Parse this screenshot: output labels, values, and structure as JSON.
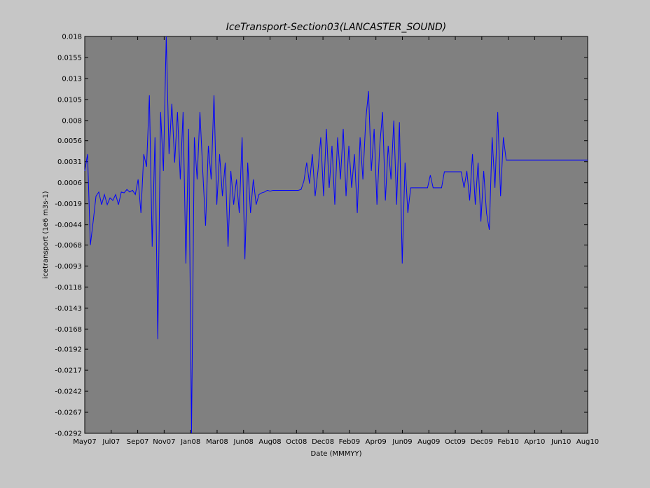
{
  "chart_data": {
    "type": "line",
    "title": "IceTransport-Section03(LANCASTER_SOUND)",
    "x_label": "Date (MMMYY)",
    "y_label": "icetransport (1e6 m3s-1)",
    "xticks": [
      "May07",
      "Jul07",
      "Sep07",
      "Nov07",
      "Jan08",
      "Mar08",
      "Jun08",
      "Aug08",
      "Oct08",
      "Dec08",
      "Feb09",
      "Apr09",
      "Jun09",
      "Aug09",
      "Oct09",
      "Dec09",
      "Feb10",
      "Apr10",
      "Jun10",
      "Aug10"
    ],
    "ylim": [
      -0.0292,
      0.018
    ],
    "yticks": [
      0.018,
      0.0155,
      0.013,
      0.0105,
      0.008,
      0.0056,
      0.0031,
      0.0006,
      -0.0019,
      -0.0044,
      -0.0068,
      -0.0093,
      -0.0118,
      -0.0143,
      -0.0168,
      -0.0192,
      -0.0217,
      -0.0242,
      -0.0267,
      -0.0292
    ],
    "color": "#0000ff",
    "values": [
      0.002,
      0.004,
      -0.0068,
      -0.004,
      -0.001,
      -0.0005,
      -0.002,
      -0.0008,
      -0.002,
      -0.0012,
      -0.0015,
      -0.0008,
      -0.002,
      -0.0005,
      -0.0006,
      -0.0002,
      -0.0005,
      -0.0003,
      -0.0008,
      0.001,
      -0.003,
      0.004,
      0.0025,
      0.011,
      -0.007,
      0.006,
      -0.018,
      0.009,
      0.002,
      0.018,
      0.004,
      0.01,
      0.003,
      0.009,
      0.001,
      0.009,
      -0.009,
      0.007,
      -0.0292,
      0.006,
      0.001,
      0.009,
      0.002,
      -0.0045,
      0.005,
      0.001,
      0.011,
      -0.002,
      0.004,
      -0.001,
      0.003,
      -0.007,
      0.002,
      -0.002,
      0.001,
      -0.003,
      0.006,
      -0.0085,
      0.003,
      -0.003,
      0.001,
      -0.002,
      -0.0008,
      -0.0006,
      -0.0005,
      -0.0003,
      -0.0004,
      -0.0003,
      -0.0003,
      -0.0003,
      -0.0003,
      -0.0003,
      -0.0003,
      -0.0003,
      -0.0003,
      -0.0003,
      -0.0003,
      -0.0002,
      0.0008,
      0.003,
      0.0005,
      0.004,
      -0.001,
      0.002,
      0.006,
      -0.001,
      0.007,
      0.0,
      0.005,
      -0.002,
      0.006,
      0.001,
      0.007,
      -0.001,
      0.005,
      0.0,
      0.004,
      -0.003,
      0.006,
      0.001,
      0.008,
      0.0115,
      0.002,
      0.007,
      -0.002,
      0.005,
      0.009,
      -0.0015,
      0.005,
      0.001,
      0.008,
      -0.002,
      0.0078,
      -0.009,
      0.003,
      -0.003,
      0.0,
      0,
      0,
      0,
      0,
      0,
      0,
      0.0015,
      0,
      0,
      0,
      0,
      0.0019,
      0.0019,
      0.0019,
      0.0019,
      0.0019,
      0.0019,
      0.0019,
      0.0,
      0.002,
      -0.0015,
      0.004,
      -0.002,
      0.003,
      -0.004,
      0.002,
      -0.003,
      -0.005,
      0.006,
      0.0,
      0.009,
      -0.001,
      0.006,
      0.0033,
      0.0033,
      0.0033,
      0.0033,
      0.0033,
      0.0033,
      0.0033,
      0.0033,
      0.0033,
      0.0033,
      0.0033,
      0.0033,
      0.0033,
      0.0033,
      0.0033,
      0.0033,
      0.0033,
      0.0033,
      0.0033,
      0.0033,
      0.0033,
      0.0033,
      0.0033,
      0.0033,
      0.0033,
      0.0033,
      0.0033,
      0.0033,
      0.0033,
      0.0033
    ]
  }
}
